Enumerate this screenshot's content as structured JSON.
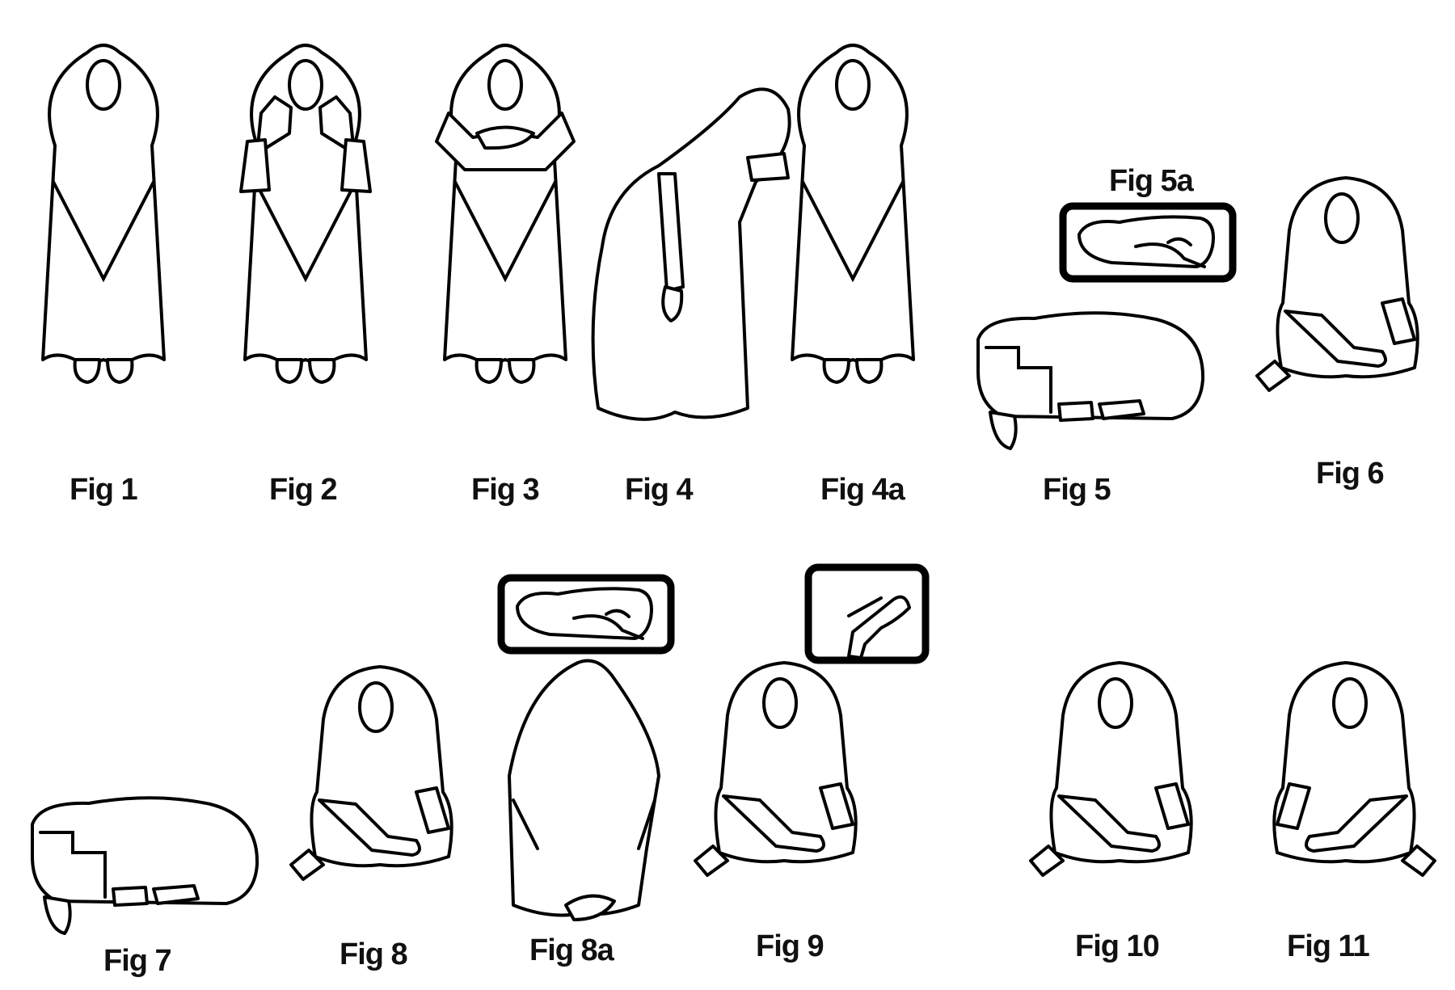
{
  "figures": {
    "fig1": "Fig 1",
    "fig2": "Fig 2",
    "fig3": "Fig 3",
    "fig4": "Fig 4",
    "fig4a": "Fig 4a",
    "fig5": "Fig 5",
    "fig5a": "Fig 5a",
    "fig6": "Fig 6",
    "fig7": "Fig 7",
    "fig8": "Fig 8",
    "fig8a": "Fig 8a",
    "fig9": "Fig 9",
    "fig10": "Fig 10",
    "fig11": "Fig 11"
  }
}
